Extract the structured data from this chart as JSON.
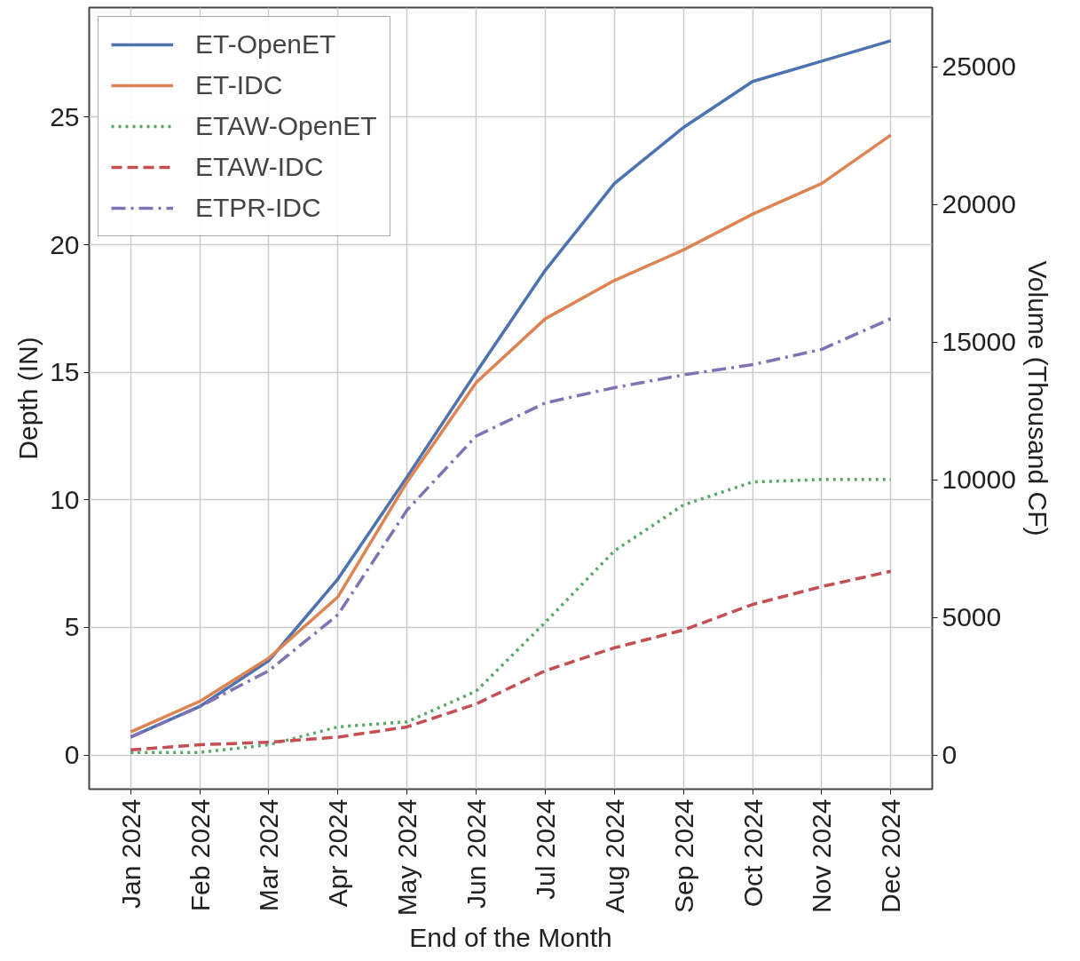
{
  "chart_data": {
    "type": "line",
    "xlabel": "End of the Month",
    "ylabel": "Depth (IN)",
    "y2label": "Volume (Thousand CF)",
    "categories": [
      "Jan 2024",
      "Feb 2024",
      "Mar 2024",
      "Apr 2024",
      "May 2024",
      "Jun 2024",
      "Jul 2024",
      "Aug 2024",
      "Sep 2024",
      "Oct 2024",
      "Nov 2024",
      "Dec 2024"
    ],
    "series": [
      {
        "name": "ET-OpenET",
        "color": "#4c72b0",
        "line_style": "solid",
        "values": [
          0.7,
          1.9,
          3.7,
          6.9,
          10.9,
          15.0,
          19.0,
          22.4,
          24.6,
          26.4,
          27.2,
          28.0
        ]
      },
      {
        "name": "ET-IDC",
        "color": "#dd8452",
        "line_style": "solid",
        "values": [
          0.9,
          2.1,
          3.8,
          6.2,
          10.7,
          14.6,
          17.1,
          18.6,
          19.8,
          21.2,
          22.4,
          24.3
        ]
      },
      {
        "name": "ETAW-OpenET",
        "color": "#55a868",
        "line_style": "dotted",
        "values": [
          0.1,
          0.1,
          0.4,
          1.1,
          1.3,
          2.5,
          5.2,
          8.0,
          9.8,
          10.7,
          10.8,
          10.8
        ]
      },
      {
        "name": "ETAW-IDC",
        "color": "#c44e52",
        "line_style": "dashed",
        "values": [
          0.2,
          0.4,
          0.5,
          0.7,
          1.1,
          2.0,
          3.3,
          4.2,
          4.9,
          5.9,
          6.6,
          7.2
        ]
      },
      {
        "name": "ETPR-IDC",
        "color": "#8172b3",
        "line_style": "dashdot",
        "values": [
          0.7,
          1.9,
          3.3,
          5.5,
          9.6,
          12.5,
          13.8,
          14.4,
          14.9,
          15.3,
          15.9,
          17.1
        ]
      }
    ],
    "ylim": [
      -1.34,
      29.3
    ],
    "yticks": [
      0,
      5,
      10,
      15,
      20,
      25
    ],
    "y2lim": [
      -1240,
      27150
    ],
    "y2ticks": [
      0,
      5000,
      10000,
      15000,
      20000,
      25000
    ],
    "grid": true,
    "legend": "top left"
  }
}
